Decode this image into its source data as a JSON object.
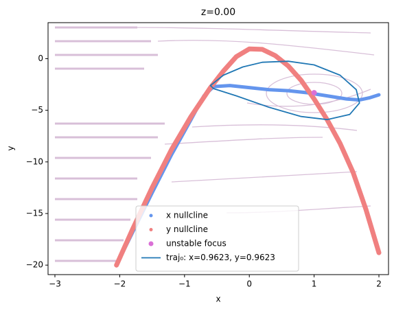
{
  "chart_data": {
    "type": "phase-plane",
    "title": "z=0.00",
    "x_label": "x",
    "y_label": "y",
    "xlim": [
      -3.106,
      2.148
    ],
    "ylim": [
      -20.92,
      3.49
    ],
    "xticks": [
      {
        "value": -3,
        "label": "−3"
      },
      {
        "value": -2,
        "label": "−2"
      },
      {
        "value": -1,
        "label": "−1"
      },
      0,
      1,
      2
    ],
    "yticks": [
      {
        "value": -20,
        "label": "−20"
      },
      {
        "value": -15,
        "label": "−15"
      },
      {
        "value": -10,
        "label": "−10"
      },
      {
        "value": -5,
        "label": "−5"
      },
      0
    ],
    "series": [
      {
        "name": "x nullcline",
        "color": "#6495ed",
        "x": [
          -2.05,
          -1.8,
          -1.5,
          -1.2,
          -0.9,
          -0.7,
          -0.55,
          -0.3,
          0,
          0.3,
          0.6,
          0.9,
          1.2,
          1.5,
          1.7,
          1.85,
          2.0
        ],
        "values": [
          -20,
          -16.8,
          -13,
          -9.3,
          -5.9,
          -3.6,
          -2.7,
          -2.6,
          -2.8,
          -3.0,
          -3.1,
          -3.3,
          -3.6,
          -3.9,
          -4.0,
          -3.8,
          -3.5
        ]
      },
      {
        "name": "y nullcline",
        "color": "#f08080",
        "x": [
          -2.05,
          -1.8,
          -1.5,
          -1.2,
          -0.9,
          -0.6,
          -0.4,
          -0.2,
          0,
          0.2,
          0.4,
          0.6,
          0.8,
          1.0,
          1.2,
          1.4,
          1.6,
          1.8,
          2.0
        ],
        "values": [
          -20,
          -16.5,
          -12.5,
          -8.8,
          -5.6,
          -2.8,
          -1.2,
          0.2,
          0.95,
          0.9,
          0.3,
          -0.7,
          -2.1,
          -3.9,
          -5.9,
          -8.2,
          -11,
          -14.6,
          -18.8
        ]
      },
      {
        "name": "unstable focus",
        "color": "#da70d6",
        "x": [
          1.0
        ],
        "values": [
          -3.3
        ]
      },
      {
        "name": "traj₀: x=0.9623, y=0.9623",
        "color": "#1f77b4",
        "x": [
          -0.6,
          -0.4,
          -0.1,
          0.2,
          0.6,
          1.0,
          1.4,
          1.65,
          1.7,
          1.55,
          1.2,
          0.8,
          0.3,
          -0.2,
          -0.55,
          -0.6
        ],
        "values": [
          -2.6,
          -1.6,
          -0.8,
          -0.35,
          -0.25,
          -0.6,
          -1.6,
          -3.0,
          -4.3,
          -5.4,
          -5.9,
          -5.6,
          -4.7,
          -3.6,
          -2.9,
          -2.6
        ]
      }
    ]
  }
}
